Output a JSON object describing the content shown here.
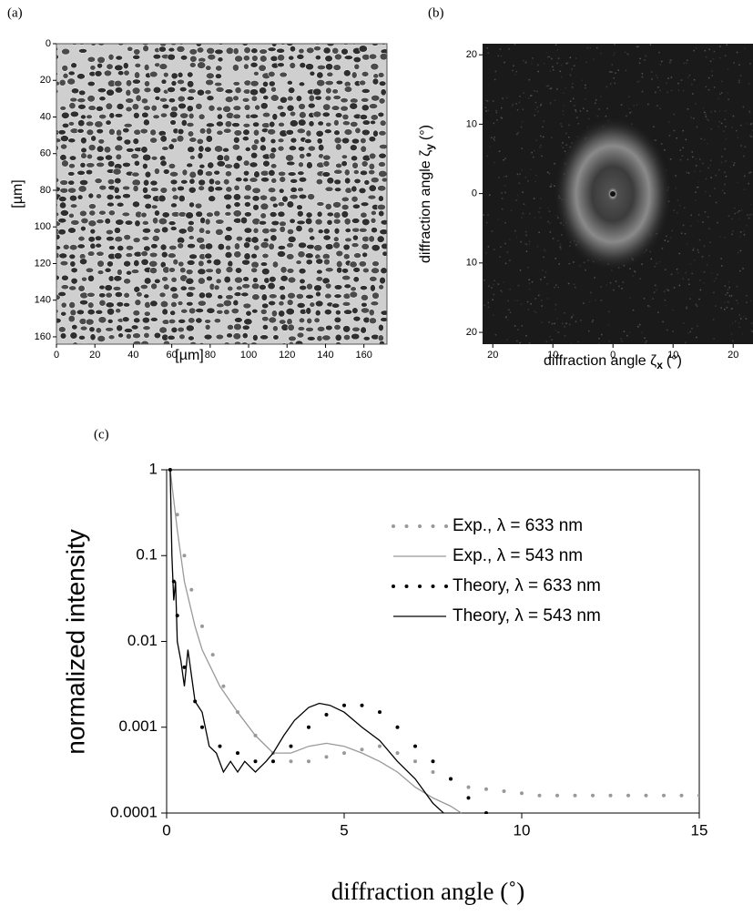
{
  "chart_data": [
    {
      "type": "image",
      "panel_label": "(a)",
      "xlabel": "[µm]",
      "ylabel": "[µm]",
      "xlim": [
        0,
        172
      ],
      "ylim": [
        164,
        0
      ],
      "xticks": [
        0,
        20,
        40,
        60,
        80,
        100,
        120,
        140,
        160
      ],
      "yticks": [
        0,
        20,
        40,
        60,
        80,
        100,
        120,
        140,
        160
      ]
    },
    {
      "type": "image",
      "panel_label": "(b)",
      "xlabel": {
        "text": "diffraction angle ζ",
        "sub": "x",
        "unit": "(°)"
      },
      "ylabel": {
        "text": "diffraction angle ζ",
        "sub": "y",
        "unit": "(°)"
      },
      "xlim": [
        -21.7,
        23.3
      ],
      "ylim": [
        -21.7,
        21.6
      ],
      "xticks": [
        {
          "value": -20,
          "label": "20"
        },
        {
          "value": -10,
          "label": "10"
        },
        0,
        10,
        20
      ],
      "yticks": [
        {
          "value": -20,
          "label": "20"
        },
        {
          "value": -10,
          "label": "10"
        },
        0,
        10,
        20
      ]
    },
    {
      "type": "line",
      "panel_label": "(c)",
      "xlabel": "diffraction angle  (˚)",
      "ylabel": "normalized intensity",
      "log_y": true,
      "xlim": [
        0,
        15
      ],
      "ylim": [
        0.0001,
        1
      ],
      "xticks": [
        0,
        5,
        10,
        15
      ],
      "yticks": [
        0.0001,
        0.001,
        0.01,
        0.1,
        1
      ],
      "legend": "upper right",
      "series": [
        {
          "name": "Exp., λ = 633 nm",
          "color": "#999999",
          "style": "dotted",
          "x": [
            0.1,
            0.3,
            0.5,
            0.7,
            1.0,
            1.3,
            1.6,
            2.0,
            2.5,
            3.0,
            3.5,
            4.0,
            4.5,
            5.0,
            5.5,
            6.0,
            6.5,
            7.0,
            7.5,
            8.0,
            8.5,
            9.0,
            9.5,
            10,
            10.5,
            11,
            11.5,
            12,
            12.5,
            13,
            13.5,
            14,
            14.5,
            15
          ],
          "values": [
            1,
            0.3,
            0.1,
            0.04,
            0.015,
            0.007,
            0.003,
            0.0015,
            0.0008,
            0.0005,
            0.0004,
            0.0004,
            0.00045,
            0.0005,
            0.00055,
            0.0006,
            0.0005,
            0.0004,
            0.0003,
            0.00025,
            0.0002,
            0.00019,
            0.00018,
            0.00017,
            0.00016,
            0.00016,
            0.00016,
            0.00016,
            0.00016,
            0.00016,
            0.00016,
            0.00016,
            0.00016,
            0.00016
          ]
        },
        {
          "name": "Exp., λ = 543 nm",
          "color": "#999999",
          "style": "solid",
          "x": [
            0.1,
            0.3,
            0.5,
            0.8,
            1.0,
            1.5,
            2.0,
            2.5,
            3.0,
            3.5,
            4.0,
            4.5,
            5.0,
            5.5,
            6.0,
            6.5,
            7.0,
            7.5,
            8.0,
            8.3
          ],
          "values": [
            1,
            0.2,
            0.05,
            0.015,
            0.008,
            0.003,
            0.0015,
            0.0008,
            0.0005,
            0.0005,
            0.0006,
            0.00065,
            0.0006,
            0.0005,
            0.0004,
            0.0003,
            0.0002,
            0.00015,
            0.00012,
            0.0001
          ]
        },
        {
          "name": "Theory, λ = 633 nm",
          "color": "#000000",
          "style": "dotted",
          "x": [
            0.1,
            0.2,
            0.3,
            0.5,
            0.8,
            1.0,
            1.5,
            2.0,
            2.5,
            3.0,
            3.5,
            4.0,
            4.5,
            5.0,
            5.5,
            6.0,
            6.5,
            7.0,
            7.5,
            8.0,
            8.5,
            9.0
          ],
          "values": [
            1,
            0.05,
            0.02,
            0.005,
            0.002,
            0.001,
            0.0006,
            0.0005,
            0.0004,
            0.0004,
            0.0006,
            0.001,
            0.0014,
            0.0018,
            0.0018,
            0.0015,
            0.001,
            0.0006,
            0.0004,
            0.00025,
            0.00015,
            0.0001
          ]
        },
        {
          "name": "Theory, λ = 543 nm",
          "color": "#000000",
          "style": "solid",
          "x": [
            0.1,
            0.15,
            0.2,
            0.25,
            0.3,
            0.4,
            0.5,
            0.6,
            0.7,
            0.8,
            1.0,
            1.2,
            1.4,
            1.6,
            1.8,
            2.0,
            2.2,
            2.5,
            2.8,
            3.0,
            3.3,
            3.6,
            4.0,
            4.3,
            4.6,
            5.0,
            5.5,
            6.0,
            6.5,
            7.0,
            7.5,
            7.8
          ],
          "values": [
            1,
            0.1,
            0.03,
            0.05,
            0.01,
            0.006,
            0.003,
            0.008,
            0.004,
            0.002,
            0.0015,
            0.0006,
            0.0005,
            0.0003,
            0.0004,
            0.0003,
            0.0004,
            0.0003,
            0.0004,
            0.0005,
            0.0008,
            0.0012,
            0.0017,
            0.0019,
            0.0018,
            0.0015,
            0.001,
            0.0007,
            0.0004,
            0.00025,
            0.00013,
            0.0001
          ]
        }
      ]
    }
  ]
}
